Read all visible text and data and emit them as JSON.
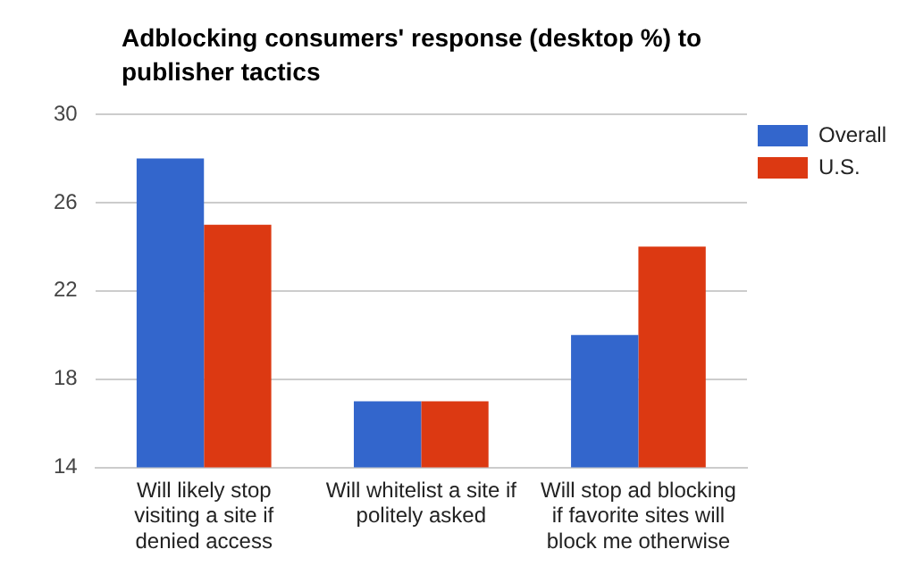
{
  "chart_data": {
    "type": "bar",
    "title": "Adblocking consumers' response (desktop %) to publisher tactics",
    "categories": [
      "Will likely stop visiting a site if denied access",
      "Will whitelist a site if politely asked",
      "Will stop ad blocking if favorite sites will block me otherwise"
    ],
    "series": [
      {
        "name": "Overall",
        "color": "#3366cc",
        "values": [
          28,
          17,
          20
        ]
      },
      {
        "name": "U.S.",
        "color": "#dc3912",
        "values": [
          25,
          17,
          24
        ]
      }
    ],
    "ylim": [
      14,
      30
    ],
    "yticks": [
      14,
      18,
      22,
      26,
      30
    ],
    "grid": "y",
    "legend": "top right"
  }
}
